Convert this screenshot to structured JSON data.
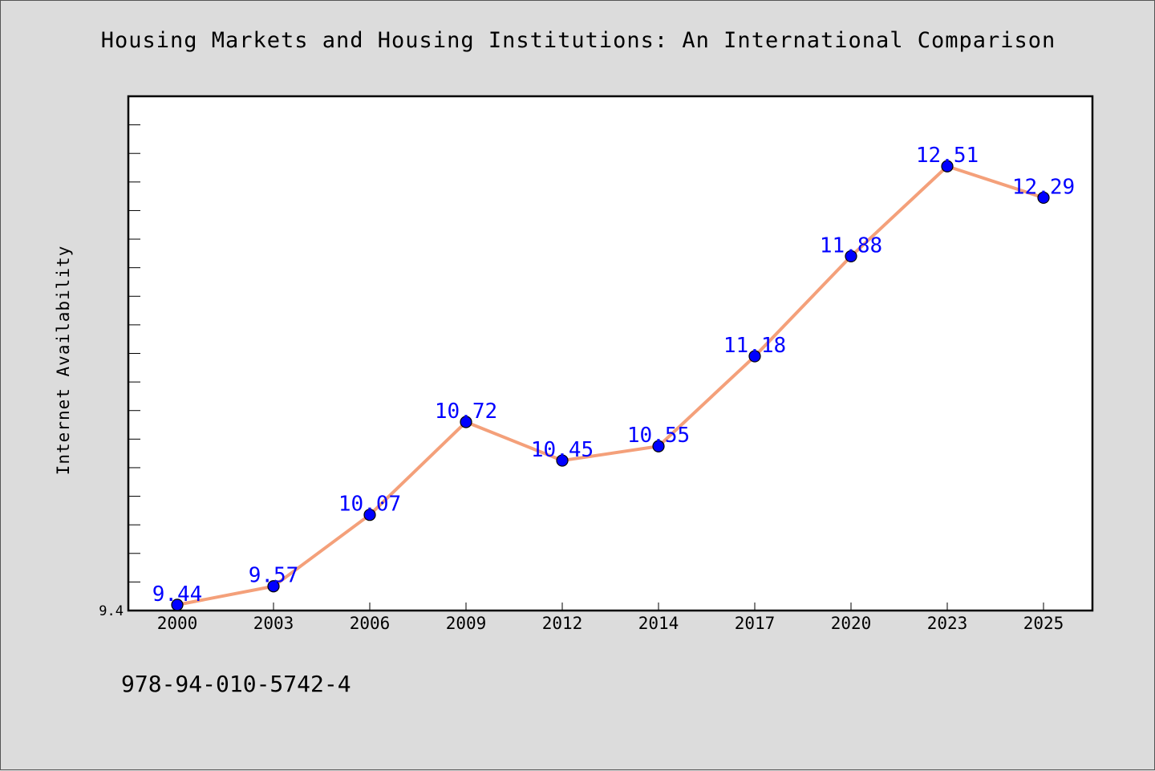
{
  "figure": {
    "title": "Housing Markets and Housing Institutions: An International Comparison",
    "footer_text": "978-94-010-5742-4"
  },
  "chart_data": {
    "type": "line",
    "title": "Housing Markets and Housing Institutions: An International Comparison",
    "xlabel": "",
    "ylabel": "Internet Availability",
    "categories": [
      "2000",
      "2003",
      "2006",
      "2009",
      "2012",
      "2014",
      "2017",
      "2020",
      "2023",
      "2025"
    ],
    "series": [
      {
        "values": [
          9.44,
          9.57,
          10.07,
          10.72,
          10.45,
          10.55,
          11.18,
          11.88,
          12.51,
          12.29
        ],
        "color": "#f4a07a",
        "marker_color": "#0000ff",
        "label_color": "#0000ff"
      }
    ],
    "ylim": [
      9.4,
      13.0
    ],
    "y_tick_labels": [
      "9.4"
    ],
    "grid": false,
    "legend": "none"
  }
}
